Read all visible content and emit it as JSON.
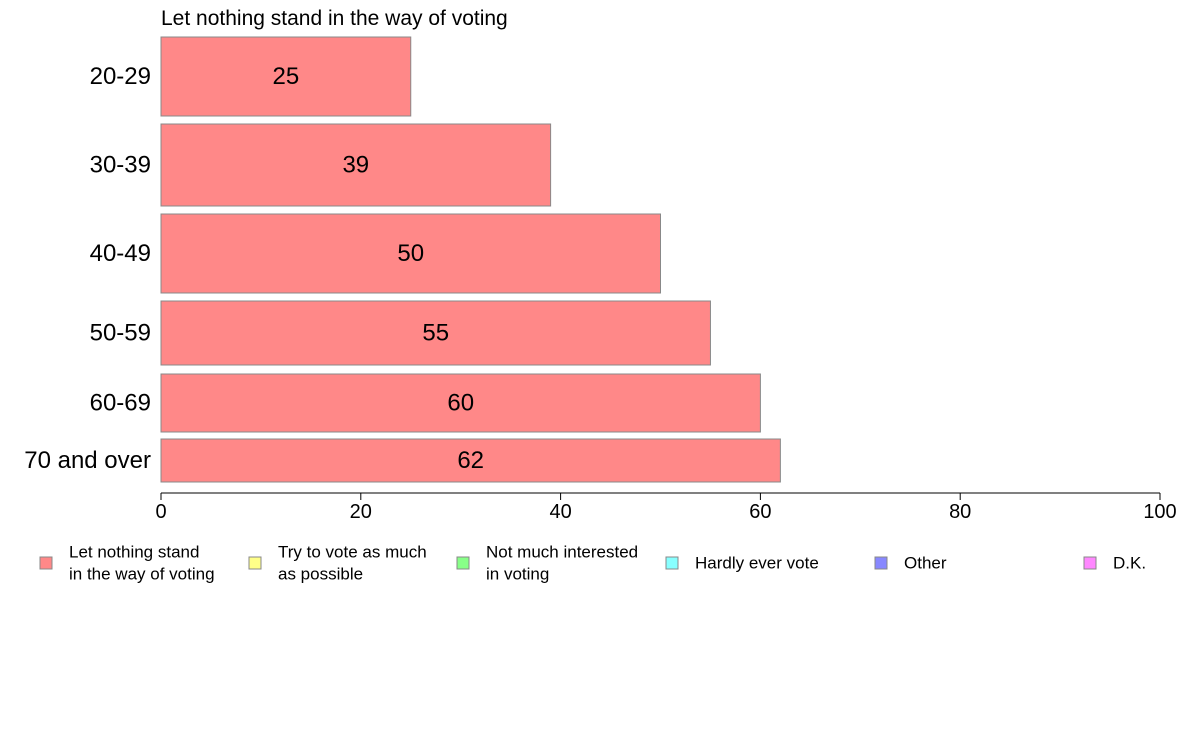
{
  "chart_data": {
    "type": "bar",
    "orientation": "horizontal",
    "title": "Let nothing stand in the way of voting",
    "xlabel": "",
    "ylabel": "",
    "categories": [
      "20-29",
      "30-39",
      "40-49",
      "50-59",
      "60-69",
      "70 and over"
    ],
    "series": [
      {
        "name": "Let nothing stand in the way of voting",
        "values": [
          25,
          39,
          50,
          55,
          60,
          62
        ]
      }
    ],
    "data_labels": [
      "25",
      "39",
      "50",
      "55",
      "60",
      "62"
    ],
    "xlim": [
      0,
      100
    ],
    "x_ticks": [
      0,
      20,
      40,
      60,
      80,
      100
    ],
    "x_tick_labels": [
      "0",
      "20",
      "40",
      "60",
      "80",
      "100"
    ],
    "grid": false,
    "legend_placement": "bottom",
    "legend": [
      {
        "lines": [
          "Let nothing stand",
          "in the way of voting"
        ],
        "color": "#ff8888"
      },
      {
        "lines": [
          "Try to vote as much",
          "as possible"
        ],
        "color": "#ffff88"
      },
      {
        "lines": [
          "Not much interested",
          "in voting"
        ],
        "color": "#88ff88"
      },
      {
        "lines": [
          "Hardly ever vote"
        ],
        "color": "#88ffff"
      },
      {
        "lines": [
          "Other"
        ],
        "color": "#8888ff"
      },
      {
        "lines": [
          "D.K."
        ],
        "color": "#ff88ff"
      }
    ],
    "bar_color": "#ff8888",
    "bar_stroke": "#888888"
  }
}
